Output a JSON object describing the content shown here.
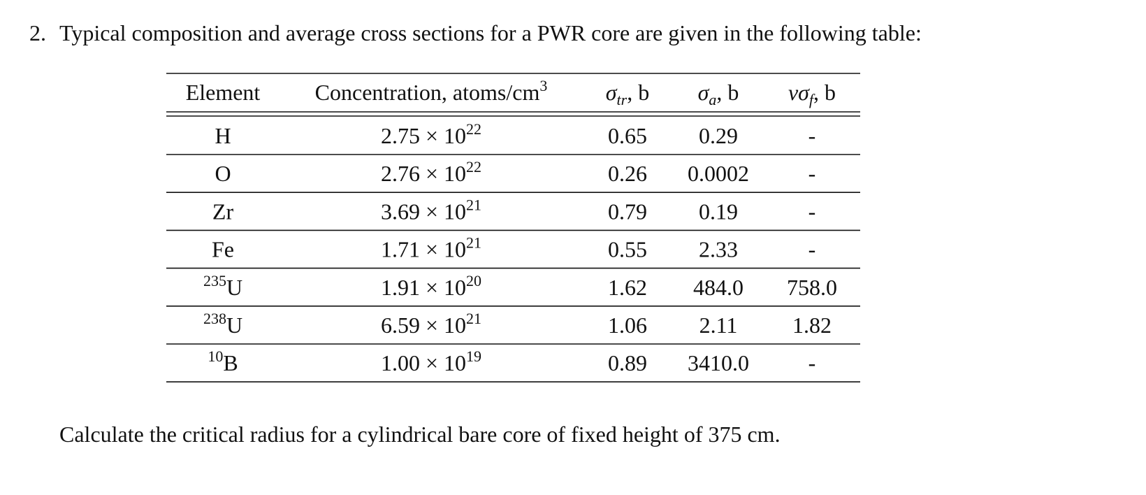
{
  "problem": {
    "number": "2.",
    "text": "Typical composition and average cross sections for a PWR core are given in the following table:"
  },
  "table": {
    "header": [
      [
        "Element"
      ],
      [
        "Concentration, atoms/cm",
        {
          "sup": "3"
        }
      ],
      [
        {
          "i": "σ"
        },
        {
          "sub": "tr"
        },
        ", b"
      ],
      [
        {
          "i": "σ"
        },
        {
          "sub": "a"
        },
        ", b"
      ],
      [
        {
          "i": "νσ"
        },
        {
          "sub": "f"
        },
        ", b"
      ]
    ],
    "rows": [
      [
        [
          "H"
        ],
        [
          "2.75 × 10",
          {
            "sup": "22"
          }
        ],
        [
          "0.65"
        ],
        [
          "0.29"
        ],
        [
          "-"
        ]
      ],
      [
        [
          "O"
        ],
        [
          "2.76 × 10",
          {
            "sup": "22"
          }
        ],
        [
          "0.26"
        ],
        [
          "0.0002"
        ],
        [
          "-"
        ]
      ],
      [
        [
          "Zr"
        ],
        [
          "3.69 × 10",
          {
            "sup": "21"
          }
        ],
        [
          "0.79"
        ],
        [
          "0.19"
        ],
        [
          "-"
        ]
      ],
      [
        [
          "Fe"
        ],
        [
          "1.71 × 10",
          {
            "sup": "21"
          }
        ],
        [
          "0.55"
        ],
        [
          "2.33"
        ],
        [
          "-"
        ]
      ],
      [
        [
          {
            "sup": "235"
          },
          "U"
        ],
        [
          "1.91 × 10",
          {
            "sup": "20"
          }
        ],
        [
          "1.62"
        ],
        [
          "484.0"
        ],
        [
          "758.0"
        ]
      ],
      [
        [
          {
            "sup": "238"
          },
          "U"
        ],
        [
          "6.59 × 10",
          {
            "sup": "21"
          }
        ],
        [
          "1.06"
        ],
        [
          "2.11"
        ],
        [
          "1.82"
        ]
      ],
      [
        [
          {
            "sup": "10"
          },
          "B"
        ],
        [
          "1.00 × 10",
          {
            "sup": "19"
          }
        ],
        [
          "0.89"
        ],
        [
          "3410.0"
        ],
        [
          "-"
        ]
      ]
    ]
  },
  "question": "Calculate the critical radius for a cylindrical bare core of fixed height of 375 cm."
}
